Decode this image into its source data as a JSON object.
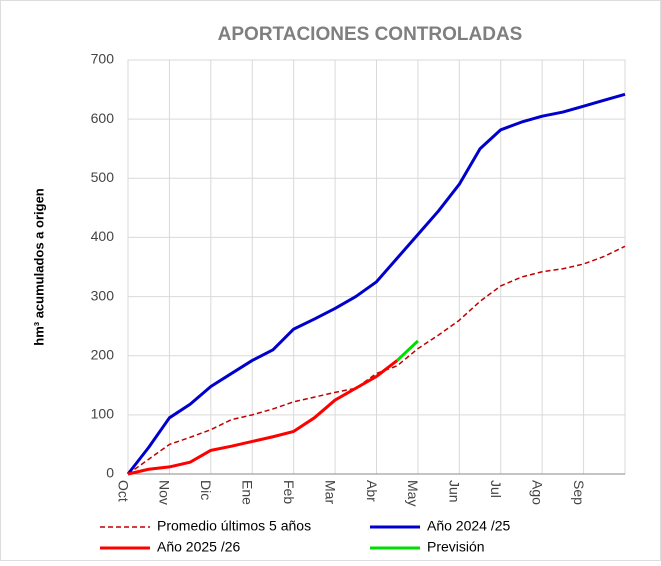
{
  "chart_data": {
    "type": "line",
    "title": "APORTACIONES CONTROLADAS",
    "y_label": "hm³ acumulados a origen",
    "categories": [
      "Oct",
      null,
      "Nov",
      null,
      "Dic",
      null,
      "Ene",
      null,
      "Feb",
      null,
      "Mar",
      null,
      "Abr",
      null,
      "May",
      null,
      "Jun",
      null,
      "Jul",
      null,
      "Ago",
      null,
      "Sep",
      null,
      null
    ],
    "ylim": [
      0,
      700
    ],
    "yticks": [
      0,
      100,
      200,
      300,
      400,
      500,
      600,
      700
    ],
    "grid": true,
    "legend": "bottom",
    "series": [
      {
        "name": "Promedio últimos 5 años",
        "color": "#c00000",
        "dashed": true,
        "values": [
          0,
          25,
          50,
          62,
          75,
          92,
          100,
          110,
          122,
          130,
          138,
          145,
          170,
          183,
          212,
          235,
          260,
          292,
          318,
          333,
          342,
          347,
          355,
          368,
          385
        ]
      },
      {
        "name": "Año 2024 /25",
        "color": "#0000cc",
        "dashed": false,
        "values": [
          0,
          45,
          95,
          118,
          148,
          170,
          192,
          210,
          245,
          262,
          280,
          300,
          325,
          365,
          405,
          445,
          490,
          550,
          582,
          595,
          605,
          612,
          622,
          632,
          642
        ]
      },
      {
        "name": "Año 2025 /26",
        "color": "#ff0000",
        "dashed": false,
        "values": [
          0,
          8,
          12,
          20,
          40,
          47,
          55,
          63,
          72,
          95,
          125,
          145,
          165,
          192,
          null,
          null,
          null,
          null,
          null,
          null,
          null,
          null,
          null,
          null,
          null
        ]
      },
      {
        "name": "Previsión",
        "color": "#00dd00",
        "dashed": false,
        "values": [
          null,
          null,
          null,
          null,
          null,
          null,
          null,
          null,
          null,
          null,
          null,
          null,
          null,
          192,
          225,
          null,
          null,
          null,
          null,
          null,
          null,
          null,
          null,
          null,
          null
        ]
      }
    ]
  }
}
